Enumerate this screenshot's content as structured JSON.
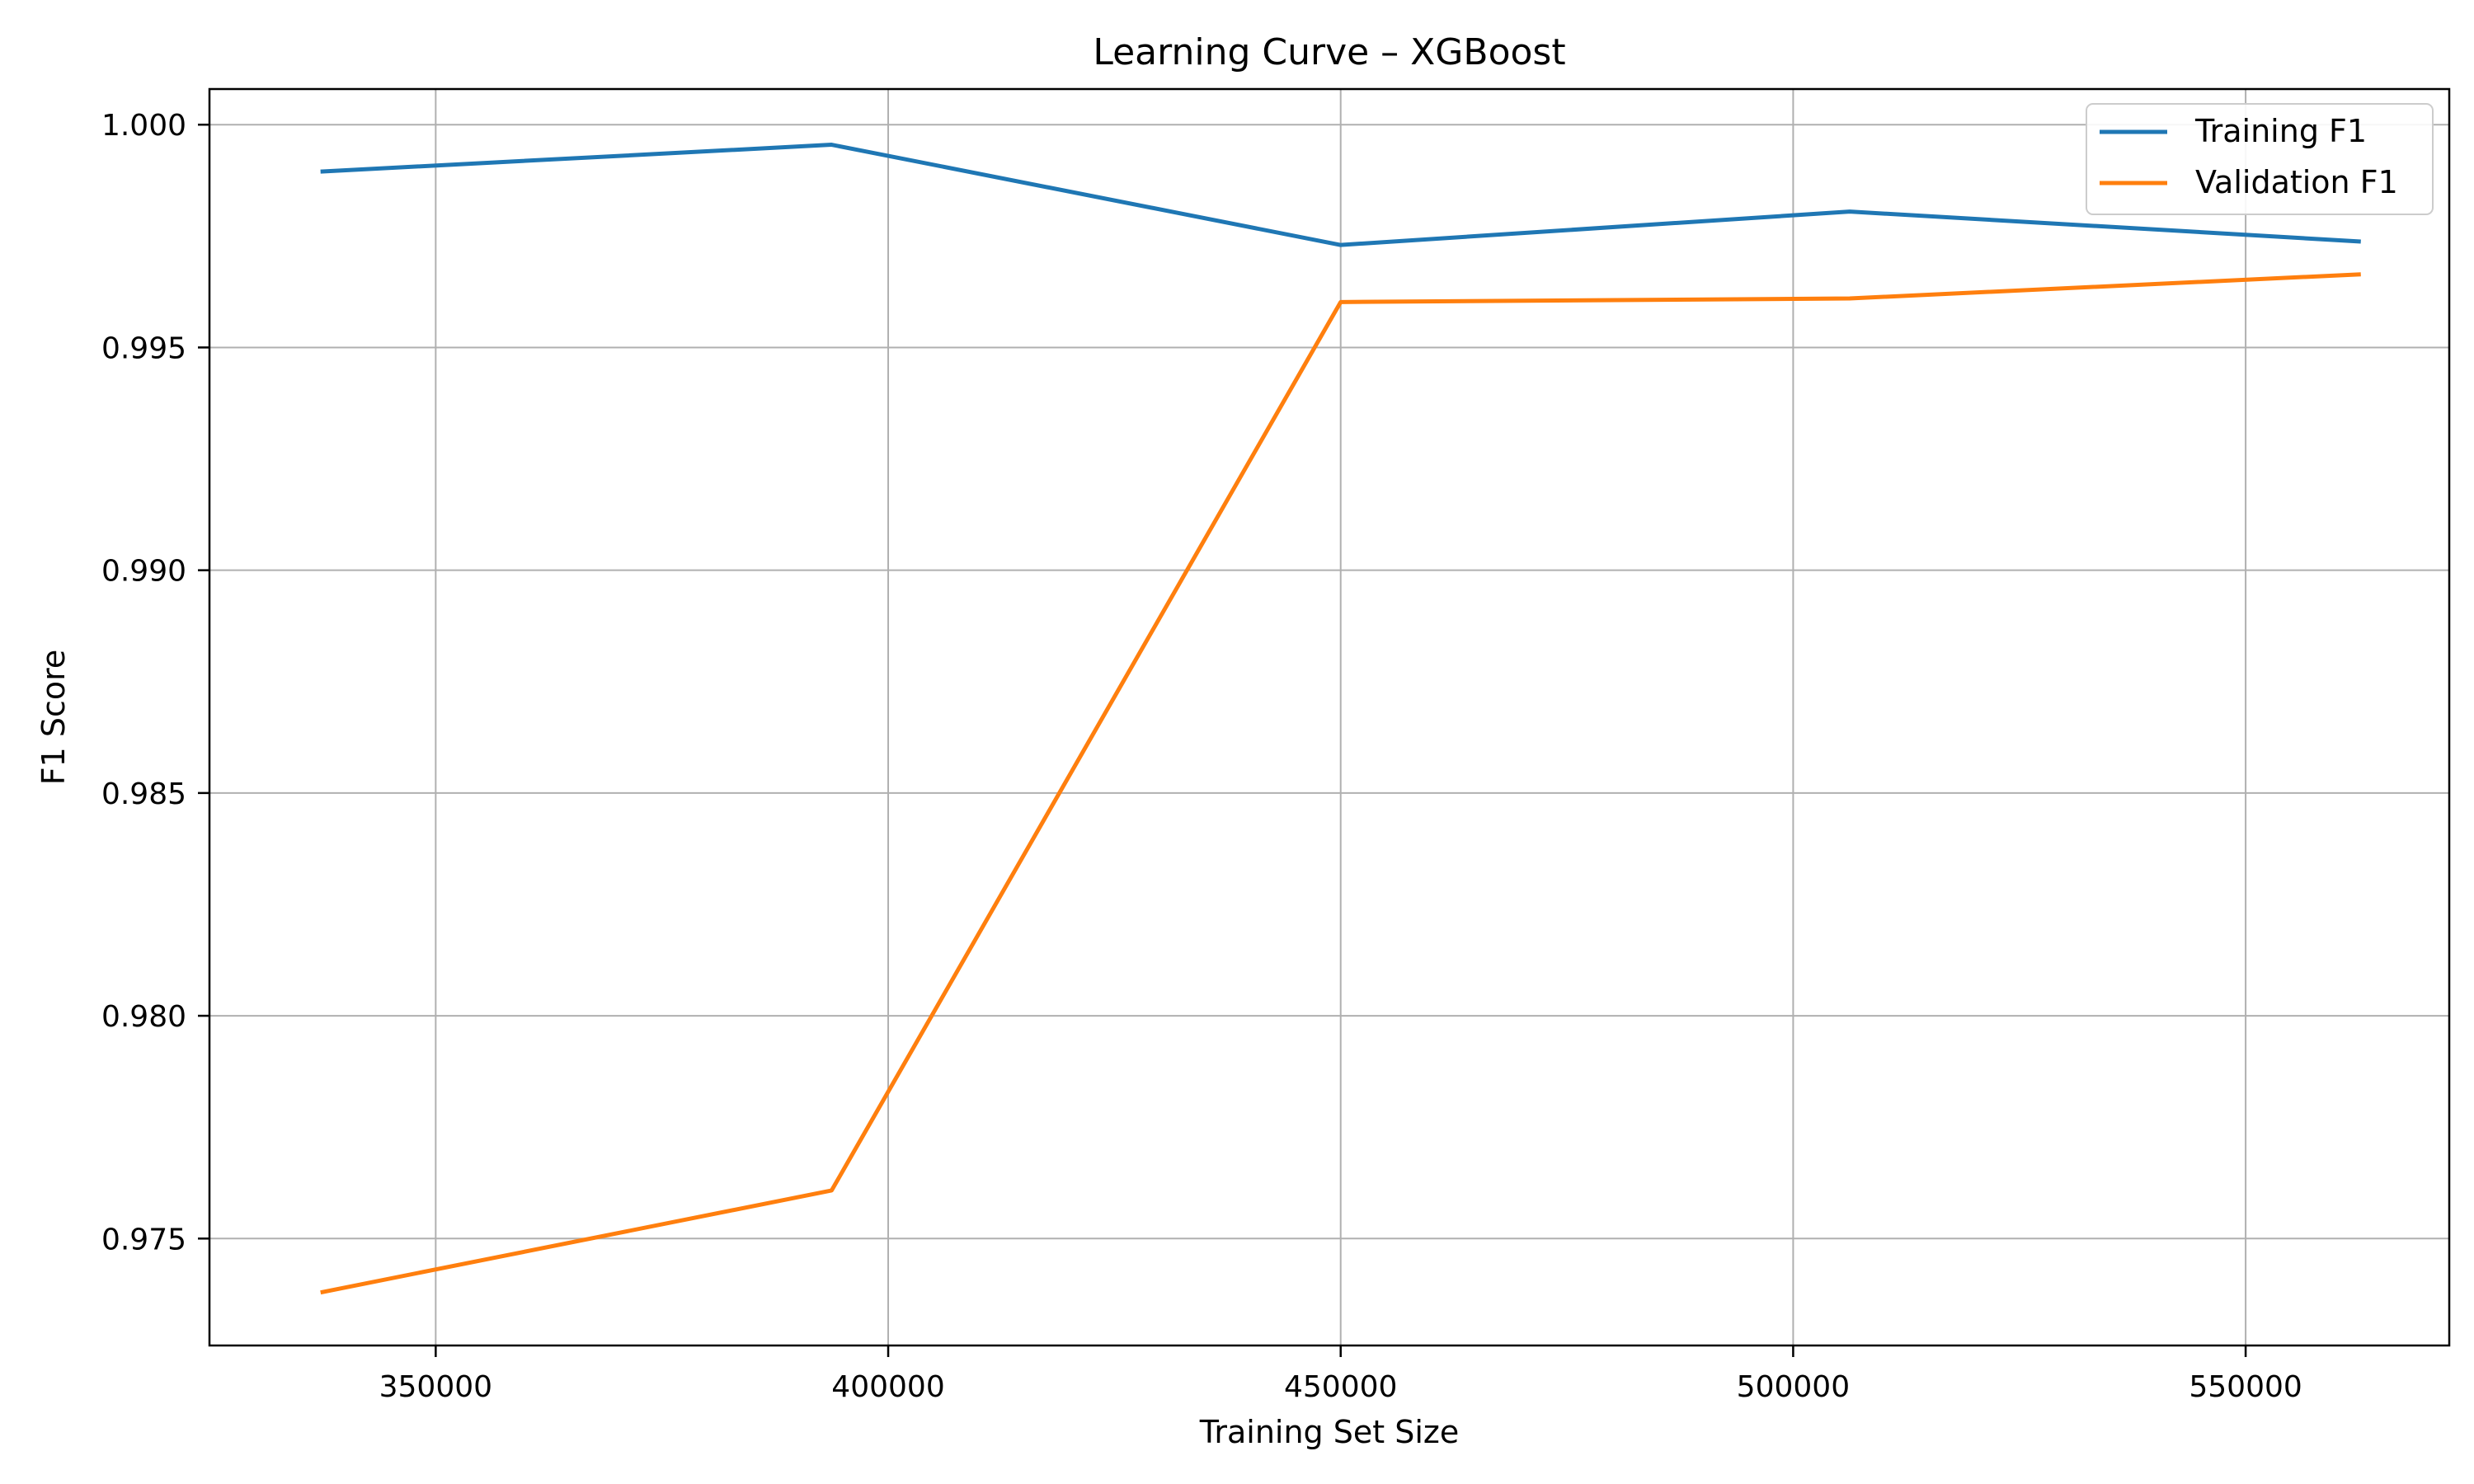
{
  "chart_data": {
    "type": "line",
    "title": "Learning Curve – XGBoost",
    "xlabel": "Training Set Size",
    "ylabel": "F1 Score",
    "x": [
      337500,
      393750,
      450000,
      506250,
      562500
    ],
    "xlim": [
      325000,
      572500
    ],
    "ylim": [
      0.9726,
      1.0008
    ],
    "xticks": [
      350000,
      400000,
      450000,
      500000,
      550000
    ],
    "yticks": [
      0.975,
      0.98,
      0.985,
      0.99,
      0.995,
      1.0
    ],
    "xtick_labels": [
      "350000",
      "400000",
      "450000",
      "500000",
      "550000"
    ],
    "ytick_labels": [
      "0.975",
      "0.980",
      "0.985",
      "0.990",
      "0.995",
      "1.000"
    ],
    "grid": true,
    "legend_position": "top-right",
    "series": [
      {
        "name": "Training F1",
        "color": "#1f77b4",
        "values": [
          0.99895,
          0.99955,
          0.9973,
          0.99805,
          0.99738
        ]
      },
      {
        "name": "Validation F1",
        "color": "#ff7f0e",
        "values": [
          0.9738,
          0.97608,
          0.99602,
          0.9961,
          0.99664
        ]
      }
    ]
  }
}
